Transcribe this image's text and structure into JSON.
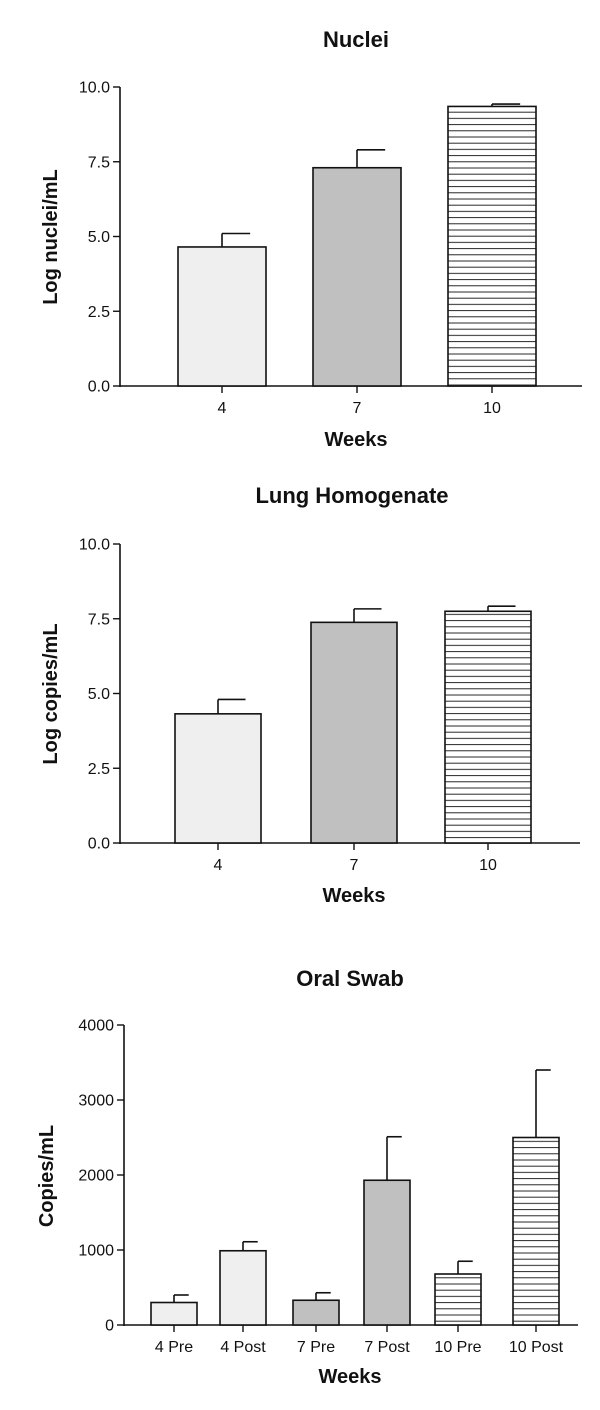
{
  "chart_data": [
    {
      "type": "bar",
      "title": "Nuclei",
      "xlabel": "Weeks",
      "ylabel": "Log nuclei/mL",
      "ylim": [
        0,
        10
      ],
      "yticks": [
        "0.0",
        "2.5",
        "5.0",
        "7.5",
        "10.0"
      ],
      "categories": [
        "4",
        "7",
        "10"
      ],
      "values": [
        4.65,
        7.3,
        9.35
      ],
      "errors": [
        0.45,
        0.6,
        0.08
      ],
      "fills": [
        "light",
        "gray",
        "striped"
      ],
      "colors": {
        "light": "#efefef",
        "gray": "#c0c0c0",
        "stripe": "#111111"
      },
      "grid": false
    },
    {
      "type": "bar",
      "title": "Lung Homogenate",
      "xlabel": "Weeks",
      "ylabel": "Log copies/mL",
      "ylim": [
        0,
        10
      ],
      "yticks": [
        "0.0",
        "2.5",
        "5.0",
        "7.5",
        "10.0"
      ],
      "categories": [
        "4",
        "7",
        "10"
      ],
      "values": [
        4.32,
        7.38,
        7.75
      ],
      "errors": [
        0.48,
        0.45,
        0.17
      ],
      "fills": [
        "light",
        "gray",
        "striped"
      ],
      "colors": {
        "light": "#efefef",
        "gray": "#c0c0c0",
        "stripe": "#111111"
      },
      "grid": false
    },
    {
      "type": "bar",
      "title": "Oral Swab",
      "xlabel": "Weeks",
      "ylabel": "Copies/mL",
      "ylim": [
        0,
        4000
      ],
      "yticks": [
        "0",
        "1000",
        "2000",
        "3000",
        "4000"
      ],
      "categories": [
        "4 Pre",
        "4 Post",
        "7 Pre",
        "7 Post",
        "10 Pre",
        "10 Post"
      ],
      "values": [
        300,
        990,
        330,
        1930,
        680,
        2500
      ],
      "errors": [
        100,
        120,
        100,
        580,
        170,
        900
      ],
      "fills": [
        "light",
        "light",
        "gray",
        "gray",
        "striped",
        "striped"
      ],
      "colors": {
        "light": "#efefef",
        "gray": "#c0c0c0",
        "stripe": "#111111"
      },
      "grid": false
    }
  ]
}
